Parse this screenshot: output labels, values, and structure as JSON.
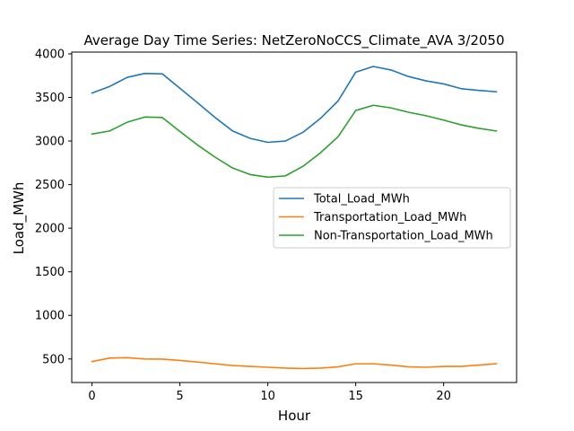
{
  "chart_data": {
    "type": "line",
    "title": "Average Day Time Series: NetZeroNoCCS_Climate_AVA 3/2050",
    "xlabel": "Hour",
    "ylabel": "Load_MWh",
    "xlim": [
      -1.15,
      24.15
    ],
    "ylim": [
      230,
      4020
    ],
    "xticks": [
      0,
      5,
      10,
      15,
      20
    ],
    "yticks": [
      500,
      1000,
      1500,
      2000,
      2500,
      3000,
      3500,
      4000
    ],
    "grid": false,
    "legend_position": "center-right",
    "x": [
      0,
      1,
      2,
      3,
      4,
      5,
      6,
      7,
      8,
      9,
      10,
      11,
      12,
      13,
      14,
      15,
      16,
      17,
      18,
      19,
      20,
      21,
      22,
      23
    ],
    "series": [
      {
        "name": "Total_Load_MWh",
        "color": "#1f77b4",
        "values": [
          3550,
          3625,
          3730,
          3775,
          3770,
          3605,
          3440,
          3270,
          3115,
          3030,
          2985,
          3000,
          3100,
          3260,
          3460,
          3790,
          3855,
          3815,
          3740,
          3690,
          3655,
          3600,
          3580,
          3565
        ]
      },
      {
        "name": "Transportation_Load_MWh",
        "color": "#ff7f0e",
        "values": [
          470,
          510,
          515,
          500,
          498,
          483,
          465,
          445,
          425,
          415,
          405,
          395,
          390,
          395,
          410,
          445,
          445,
          430,
          410,
          405,
          415,
          415,
          430,
          445
        ]
      },
      {
        "name": "Non-Transportation_Load_MWh",
        "color": "#2ca02c",
        "values": [
          3080,
          3115,
          3215,
          3275,
          3270,
          3110,
          2955,
          2815,
          2690,
          2615,
          2585,
          2600,
          2710,
          2865,
          3050,
          3350,
          3410,
          3380,
          3330,
          3290,
          3240,
          3185,
          3145,
          3115
        ]
      }
    ]
  }
}
